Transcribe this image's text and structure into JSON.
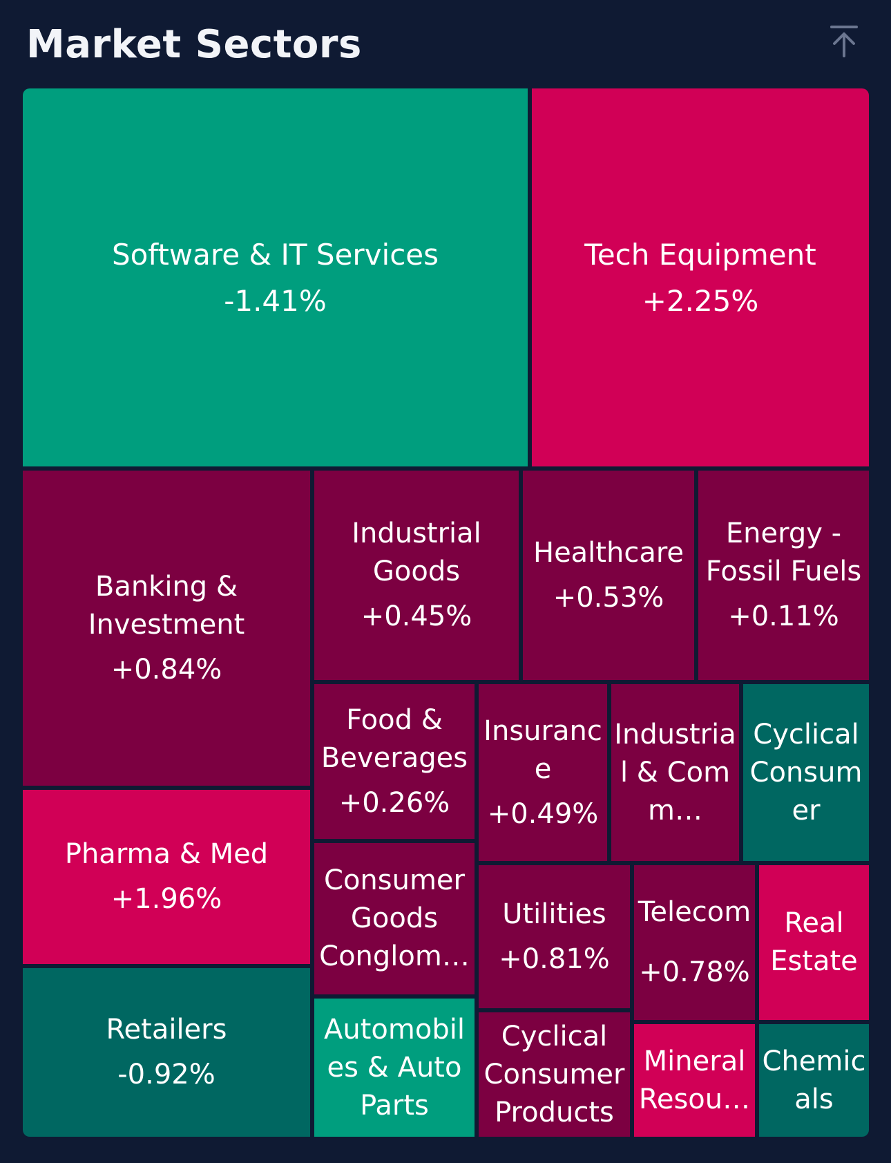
{
  "header": {
    "title": "Market Sectors",
    "collapse_icon": "arrow-up-to-line-icon"
  },
  "colors": {
    "background": "#0f1a33",
    "strong_green": "#009e7e",
    "dark_green": "#006761",
    "strong_red": "#d10056",
    "dark_red": "#7c0041"
  },
  "sectors": [
    {
      "name": "Software & IT Services",
      "change": "-1.41%"
    },
    {
      "name": "Tech Equipment",
      "change": "+2.25%"
    },
    {
      "name": "Banking & Investment",
      "change": "+0.84%"
    },
    {
      "name": "Industrial Goods",
      "change": "+0.45%"
    },
    {
      "name": "Healthcare",
      "change": "+0.53%"
    },
    {
      "name": "Energy - Fossil Fuels",
      "change": "+0.11%"
    },
    {
      "name": "Pharma & Med",
      "change": "+1.96%"
    },
    {
      "name": "Food & Beverages",
      "change": "+0.26%"
    },
    {
      "name": "Insurance",
      "change": "+0.49%"
    },
    {
      "name": "Industrial & Comm…",
      "change": ""
    },
    {
      "name": "Cyclical Consumer",
      "change": ""
    },
    {
      "name": "Consumer Goods Conglom…",
      "change": ""
    },
    {
      "name": "Utilities",
      "change": "+0.81%"
    },
    {
      "name": "Telecom",
      "change": "+0.78%"
    },
    {
      "name": "Real Estate",
      "change": ""
    },
    {
      "name": "Retailers",
      "change": "-0.92%"
    },
    {
      "name": "Automobiles & Auto Parts",
      "change": ""
    },
    {
      "name": "Cyclical Consumer Products",
      "change": ""
    },
    {
      "name": "Mineral Resou…",
      "change": ""
    },
    {
      "name": "Chemicals",
      "change": ""
    }
  ]
}
